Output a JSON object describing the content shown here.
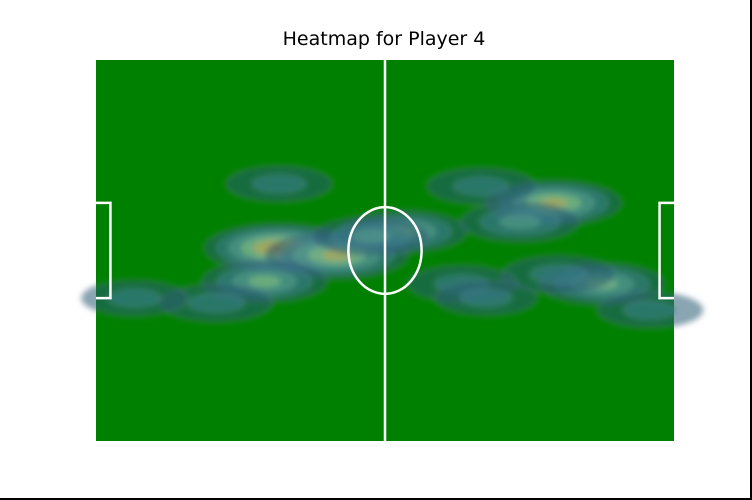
{
  "chart_data": {
    "type": "heatmap",
    "title": "Heatmap for Player 4",
    "xlabel": "",
    "ylabel": "",
    "xlim": [
      0,
      120
    ],
    "ylim": [
      0,
      80
    ],
    "grid": false,
    "axes": "off",
    "pitch_color": "#008000",
    "line_color": "#ffffff",
    "colormap": [
      "#2a5d73",
      "#3b7f8c",
      "#5aa38c",
      "#8cc47a",
      "#c8a640",
      "#a67a2d"
    ],
    "density_peaks": [
      {
        "x": 38,
        "y": 40.5,
        "level": 0.95
      },
      {
        "x": 50,
        "y": 39,
        "level": 0.85
      },
      {
        "x": 35,
        "y": 33.5,
        "level": 0.6
      },
      {
        "x": 25,
        "y": 29,
        "level": 0.4
      },
      {
        "x": 64,
        "y": 44,
        "level": 0.6
      },
      {
        "x": 57,
        "y": 43,
        "level": 0.45
      },
      {
        "x": 38,
        "y": 54,
        "level": 0.3
      },
      {
        "x": 95,
        "y": 50,
        "level": 0.75
      },
      {
        "x": 88,
        "y": 46,
        "level": 0.5
      },
      {
        "x": 105,
        "y": 33,
        "level": 0.6
      },
      {
        "x": 96,
        "y": 35,
        "level": 0.4
      },
      {
        "x": 76,
        "y": 33,
        "level": 0.35
      },
      {
        "x": 80,
        "y": 53.5,
        "level": 0.35
      },
      {
        "x": 8,
        "y": 30,
        "level": 0.3
      },
      {
        "x": 115,
        "y": 27.5,
        "level": 0.3
      },
      {
        "x": 81,
        "y": 30,
        "level": 0.25
      }
    ]
  }
}
